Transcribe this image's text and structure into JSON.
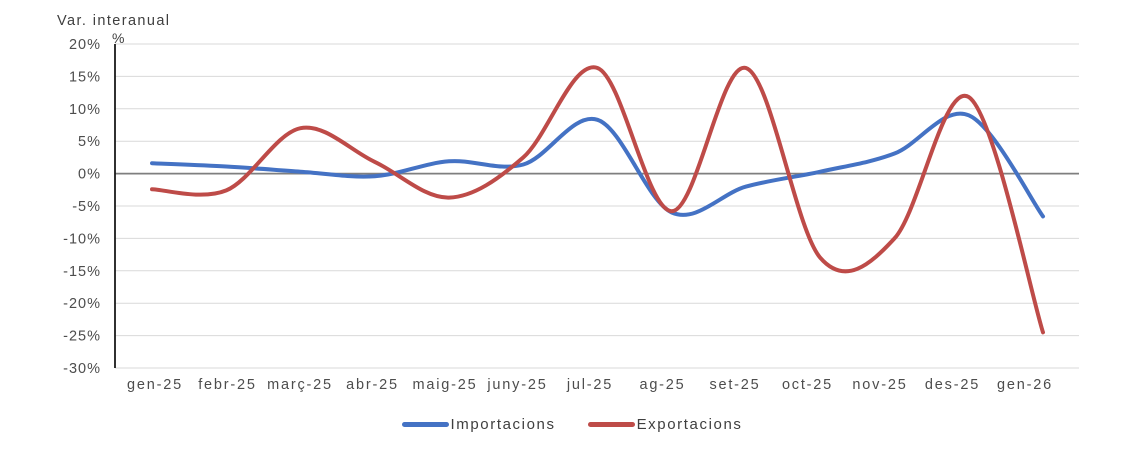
{
  "chart_data": {
    "type": "line",
    "title": "Var. interanual",
    "y_axis_unit": "%",
    "categories": [
      "gen-25",
      "febr-25",
      "març-25",
      "abr-25",
      "maig-25",
      "juny-25",
      "jul-25",
      "ag-25",
      "set-25",
      "oct-25",
      "nov-25",
      "des-25",
      "gen-26"
    ],
    "series": [
      {
        "name": "Importacions",
        "color": "#4472C4",
        "values": [
          1.6,
          1.1,
          0.3,
          -0.4,
          1.9,
          1.4,
          8.3,
          -6.0,
          -2.0,
          0.3,
          3.1,
          9.0,
          -6.6
        ]
      },
      {
        "name": "Exportacions",
        "color": "#BE4B48",
        "values": [
          -2.4,
          -2.6,
          7.0,
          1.8,
          -3.7,
          2.5,
          16.3,
          -5.8,
          16.3,
          -13.0,
          -10.0,
          11.8,
          -24.5
        ]
      }
    ],
    "y_ticks": [
      {
        "label": "20%",
        "value": 20
      },
      {
        "label": "15%",
        "value": 15
      },
      {
        "label": "10%",
        "value": 10
      },
      {
        "label": "5%",
        "value": 5
      },
      {
        "label": "0%",
        "value": 0
      },
      {
        "label": "-5%",
        "value": -5
      },
      {
        "label": "-10%",
        "value": -10
      },
      {
        "label": "-15%",
        "value": -15
      },
      {
        "label": "-20%",
        "value": -20
      },
      {
        "label": "-25%",
        "value": -25
      },
      {
        "label": "-30%",
        "value": -30
      }
    ],
    "ylim": [
      -30,
      20
    ],
    "grid": true,
    "zero_line": true,
    "legend_position": "bottom",
    "line_smoothing": "spline"
  },
  "colors": {
    "gridline": "#D9D9D9",
    "zero_line": "#7F7F7F",
    "axis_line": "#1A1A1A",
    "tick_text": "#4D4D4D"
  }
}
